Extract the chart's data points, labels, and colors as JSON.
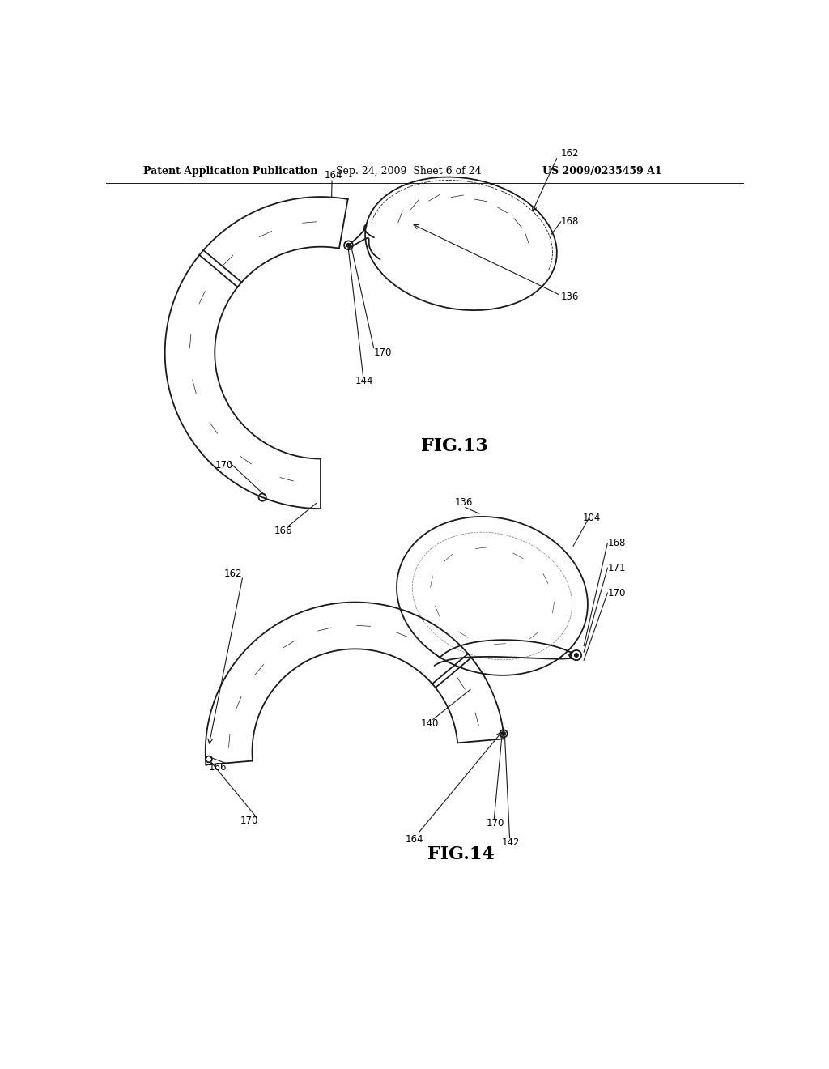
{
  "background_color": "#ffffff",
  "header_left": "Patent Application Publication",
  "header_mid": "Sep. 24, 2009  Sheet 6 of 24",
  "header_right": "US 2009/0235459 A1",
  "fig13_label": "FIG.13",
  "fig14_label": "FIG.14",
  "header_fontsize": 9,
  "fig_label_fontsize": 16,
  "ref_fontsize": 8.5,
  "line_color": "#1a1a1a",
  "text_color": "#000000"
}
